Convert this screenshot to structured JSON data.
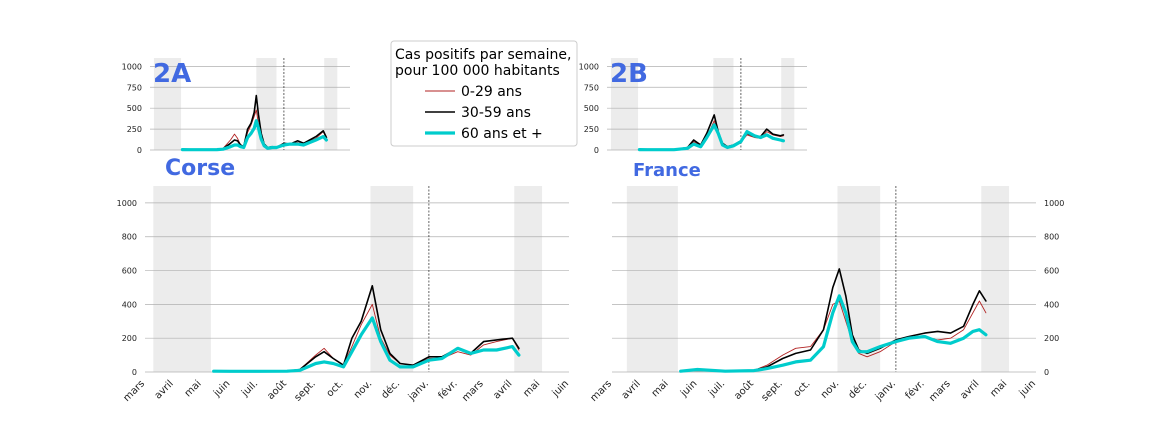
{
  "legend": {
    "title_line1": "Cas positifs par semaine,",
    "title_line2": "pour 100 000 habitants",
    "entries": [
      {
        "label": "0-29 ans",
        "color": "#b22222"
      },
      {
        "label": "30-59 ans",
        "color": "#000000"
      },
      {
        "label": "60 ans et +",
        "color": "#00cccc"
      }
    ]
  },
  "colors": {
    "title": "#4169e1",
    "shade": "#ececec",
    "grid": "#b0b0b0"
  },
  "chart_data": [
    {
      "id": "2A",
      "type": "line",
      "title": "2A",
      "title_position": "inside-top-left",
      "xlim": [
        "2020-03-01",
        "2021-06-01"
      ],
      "ylim": [
        0,
        1100
      ],
      "yticks": [
        0,
        250,
        500,
        750,
        1000
      ],
      "grid": "horizontal",
      "shaded_periods": [
        [
          "2020-03-10",
          "2020-05-11"
        ],
        [
          "2020-10-30",
          "2020-12-15"
        ],
        [
          "2021-04-03",
          "2021-05-03"
        ]
      ],
      "vline": "2021-01-01",
      "series": [
        {
          "name": "0-29 ans",
          "x": [
            "2020-05-14",
            "2020-06-01",
            "2020-06-15",
            "2020-07-01",
            "2020-07-15",
            "2020-08-01",
            "2020-08-15",
            "2020-09-01",
            "2020-09-10",
            "2020-09-17",
            "2020-09-24",
            "2020-10-01",
            "2020-10-10",
            "2020-10-18",
            "2020-10-25",
            "2020-10-30",
            "2020-11-04",
            "2020-11-10",
            "2020-11-17",
            "2020-11-25",
            "2020-12-05",
            "2020-12-15",
            "2021-01-01",
            "2021-01-15",
            "2021-02-01",
            "2021-02-15",
            "2021-03-01",
            "2021-03-15",
            "2021-04-01",
            "2021-04-08"
          ],
          "y": [
            5,
            4,
            3,
            3,
            4,
            6,
            20,
            120,
            190,
            140,
            60,
            40,
            210,
            300,
            400,
            480,
            310,
            170,
            60,
            30,
            40,
            30,
            60,
            80,
            90,
            70,
            110,
            140,
            220,
            140
          ]
        },
        {
          "name": "30-59 ans",
          "x": [
            "2020-05-14",
            "2020-06-01",
            "2020-06-15",
            "2020-07-01",
            "2020-07-15",
            "2020-08-01",
            "2020-08-15",
            "2020-09-01",
            "2020-09-10",
            "2020-09-17",
            "2020-09-24",
            "2020-10-01",
            "2020-10-10",
            "2020-10-18",
            "2020-10-25",
            "2020-10-30",
            "2020-11-04",
            "2020-11-10",
            "2020-11-17",
            "2020-11-25",
            "2020-12-05",
            "2020-12-15",
            "2021-01-01",
            "2021-01-15",
            "2021-02-01",
            "2021-02-15",
            "2021-03-01",
            "2021-03-15",
            "2021-04-01",
            "2021-04-08"
          ],
          "y": [
            5,
            4,
            3,
            3,
            4,
            6,
            15,
            80,
            120,
            110,
            60,
            40,
            250,
            320,
            450,
            650,
            420,
            200,
            70,
            30,
            40,
            30,
            80,
            70,
            110,
            80,
            120,
            160,
            230,
            150
          ]
        },
        {
          "name": "60 ans et +",
          "x": [
            "2020-05-14",
            "2020-06-01",
            "2020-06-15",
            "2020-07-01",
            "2020-07-15",
            "2020-08-01",
            "2020-08-15",
            "2020-09-01",
            "2020-09-10",
            "2020-09-17",
            "2020-09-24",
            "2020-10-01",
            "2020-10-10",
            "2020-10-18",
            "2020-10-25",
            "2020-10-30",
            "2020-11-04",
            "2020-11-10",
            "2020-11-17",
            "2020-11-25",
            "2020-12-05",
            "2020-12-15",
            "2021-01-01",
            "2021-01-15",
            "2021-02-01",
            "2021-02-15",
            "2021-03-01",
            "2021-03-15",
            "2021-04-01",
            "2021-04-08"
          ],
          "y": [
            5,
            4,
            3,
            3,
            4,
            5,
            10,
            40,
            60,
            60,
            40,
            30,
            150,
            200,
            260,
            350,
            260,
            130,
            50,
            20,
            30,
            30,
            60,
            70,
            70,
            60,
            90,
            120,
            160,
            120
          ]
        }
      ]
    },
    {
      "id": "2B",
      "type": "line",
      "title": "2B",
      "title_position": "inside-top-left",
      "xlim": [
        "2020-03-01",
        "2021-06-01"
      ],
      "ylim": [
        0,
        1100
      ],
      "yticks": [
        0,
        250,
        500,
        750,
        1000
      ],
      "grid": "horizontal",
      "shaded_periods": [
        [
          "2020-03-10",
          "2020-05-11"
        ],
        [
          "2020-10-30",
          "2020-12-15"
        ],
        [
          "2021-04-03",
          "2021-05-03"
        ]
      ],
      "vline": "2021-01-01",
      "series": [
        {
          "name": "0-29 ans",
          "x": [
            "2020-05-14",
            "2020-06-01",
            "2020-07-01",
            "2020-08-01",
            "2020-09-01",
            "2020-09-15",
            "2020-10-01",
            "2020-10-15",
            "2020-11-01",
            "2020-11-10",
            "2020-11-20",
            "2020-12-01",
            "2020-12-15",
            "2021-01-01",
            "2021-01-15",
            "2021-02-01",
            "2021-02-15",
            "2021-03-01",
            "2021-03-15",
            "2021-04-01",
            "2021-04-08"
          ],
          "y": [
            5,
            4,
            3,
            4,
            20,
            100,
            50,
            150,
            350,
            200,
            80,
            40,
            50,
            90,
            180,
            150,
            140,
            220,
            180,
            160,
            170
          ]
        },
        {
          "name": "30-59 ans",
          "x": [
            "2020-05-14",
            "2020-06-01",
            "2020-07-01",
            "2020-08-01",
            "2020-09-01",
            "2020-09-15",
            "2020-10-01",
            "2020-10-15",
            "2020-11-01",
            "2020-11-10",
            "2020-11-20",
            "2020-12-01",
            "2020-12-15",
            "2021-01-01",
            "2021-01-15",
            "2021-02-01",
            "2021-02-15",
            "2021-03-01",
            "2021-03-15",
            "2021-04-01",
            "2021-04-08"
          ],
          "y": [
            5,
            4,
            3,
            4,
            30,
            120,
            60,
            200,
            420,
            220,
            80,
            40,
            60,
            110,
            200,
            160,
            160,
            250,
            190,
            170,
            180
          ]
        },
        {
          "name": "60 ans et +",
          "x": [
            "2020-05-14",
            "2020-06-01",
            "2020-07-01",
            "2020-08-01",
            "2020-09-01",
            "2020-09-15",
            "2020-10-01",
            "2020-10-15",
            "2020-11-01",
            "2020-11-10",
            "2020-11-20",
            "2020-12-01",
            "2020-12-15",
            "2021-01-01",
            "2021-01-15",
            "2021-02-01",
            "2021-02-15",
            "2021-03-01",
            "2021-03-15",
            "2021-04-01",
            "2021-04-08"
          ],
          "y": [
            5,
            4,
            3,
            4,
            20,
            70,
            40,
            150,
            300,
            200,
            60,
            30,
            50,
            100,
            220,
            170,
            150,
            180,
            140,
            120,
            110
          ]
        }
      ]
    },
    {
      "id": "corse",
      "type": "line",
      "title": "Corse",
      "title_position": "above-left",
      "xlim": [
        "2020-03-01",
        "2021-06-01"
      ],
      "ylim": [
        0,
        1100
      ],
      "yticks": [
        0,
        200,
        400,
        600,
        800,
        1000
      ],
      "y_axis_side": "left",
      "grid": "horizontal",
      "x_tick_labels": [
        "mars",
        "avril",
        "mai",
        "juin",
        "juil.",
        "août",
        "sept.",
        "oct.",
        "nov.",
        "déc.",
        "janv.",
        "févr.",
        "mars",
        "avril",
        "mai",
        "juin"
      ],
      "x_tick_dates": [
        "2020-03-01",
        "2020-04-01",
        "2020-05-01",
        "2020-06-01",
        "2020-07-01",
        "2020-08-01",
        "2020-09-01",
        "2020-10-01",
        "2020-11-01",
        "2020-12-01",
        "2021-01-01",
        "2021-02-01",
        "2021-03-01",
        "2021-04-01",
        "2021-05-01",
        "2021-06-01"
      ],
      "shaded_periods": [
        [
          "2020-03-10",
          "2020-05-11"
        ],
        [
          "2020-10-30",
          "2020-12-15"
        ],
        [
          "2021-04-03",
          "2021-05-03"
        ]
      ],
      "vline": "2021-01-01",
      "series": [
        {
          "name": "0-29 ans",
          "x": [
            "2020-05-14",
            "2020-06-01",
            "2020-07-01",
            "2020-08-01",
            "2020-08-15",
            "2020-09-01",
            "2020-09-10",
            "2020-09-20",
            "2020-10-01",
            "2020-10-10",
            "2020-10-20",
            "2020-11-01",
            "2020-11-10",
            "2020-11-20",
            "2020-12-01",
            "2020-12-15",
            "2021-01-01",
            "2021-01-15",
            "2021-02-01",
            "2021-02-15",
            "2021-03-01",
            "2021-03-15",
            "2021-04-01",
            "2021-04-08"
          ],
          "y": [
            5,
            4,
            4,
            5,
            15,
            100,
            140,
            80,
            40,
            150,
            280,
            400,
            200,
            100,
            50,
            40,
            80,
            80,
            120,
            100,
            160,
            180,
            200,
            130
          ]
        },
        {
          "name": "30-59 ans",
          "x": [
            "2020-05-14",
            "2020-06-01",
            "2020-07-01",
            "2020-08-01",
            "2020-08-15",
            "2020-09-01",
            "2020-09-10",
            "2020-09-20",
            "2020-10-01",
            "2020-10-10",
            "2020-10-20",
            "2020-11-01",
            "2020-11-10",
            "2020-11-20",
            "2020-12-01",
            "2020-12-15",
            "2021-01-01",
            "2021-01-15",
            "2021-02-01",
            "2021-02-15",
            "2021-03-01",
            "2021-03-15",
            "2021-04-01",
            "2021-04-08"
          ],
          "y": [
            5,
            4,
            4,
            5,
            15,
            90,
            120,
            80,
            40,
            200,
            300,
            510,
            250,
            110,
            50,
            40,
            90,
            90,
            140,
            110,
            180,
            190,
            200,
            140
          ]
        },
        {
          "name": "60 ans et +",
          "x": [
            "2020-05-14",
            "2020-06-01",
            "2020-07-01",
            "2020-08-01",
            "2020-08-15",
            "2020-09-01",
            "2020-09-10",
            "2020-09-20",
            "2020-10-01",
            "2020-10-10",
            "2020-10-20",
            "2020-11-01",
            "2020-11-10",
            "2020-11-20",
            "2020-12-01",
            "2020-12-15",
            "2021-01-01",
            "2021-01-15",
            "2021-02-01",
            "2021-02-15",
            "2021-03-01",
            "2021-03-15",
            "2021-04-01",
            "2021-04-08"
          ],
          "y": [
            5,
            4,
            4,
            5,
            10,
            50,
            60,
            50,
            30,
            120,
            220,
            320,
            180,
            70,
            30,
            30,
            70,
            80,
            140,
            110,
            130,
            130,
            150,
            100
          ]
        }
      ]
    },
    {
      "id": "france",
      "type": "line",
      "title": "France",
      "title_position": "above-left",
      "xlim": [
        "2020-03-01",
        "2021-06-01"
      ],
      "ylim": [
        0,
        1100
      ],
      "yticks": [
        0,
        200,
        400,
        600,
        800,
        1000
      ],
      "y_axis_side": "right",
      "grid": "horizontal",
      "x_tick_labels": [
        "mars",
        "avril",
        "mai",
        "juin",
        "juil.",
        "août",
        "sept.",
        "oct.",
        "nov.",
        "déc.",
        "janv.",
        "févr.",
        "mars",
        "avril",
        "mai",
        "juin"
      ],
      "x_tick_dates": [
        "2020-03-01",
        "2020-04-01",
        "2020-05-01",
        "2020-06-01",
        "2020-07-01",
        "2020-08-01",
        "2020-09-01",
        "2020-10-01",
        "2020-11-01",
        "2020-12-01",
        "2021-01-01",
        "2021-02-01",
        "2021-03-01",
        "2021-04-01",
        "2021-05-01",
        "2021-06-01"
      ],
      "shaded_periods": [
        [
          "2020-03-17",
          "2020-05-11"
        ],
        [
          "2020-10-30",
          "2020-12-15"
        ],
        [
          "2021-04-03",
          "2021-05-03"
        ]
      ],
      "vline": "2021-01-01",
      "series": [
        {
          "name": "0-29 ans",
          "x": [
            "2020-05-14",
            "2020-06-01",
            "2020-07-01",
            "2020-08-01",
            "2020-08-15",
            "2020-09-01",
            "2020-09-15",
            "2020-10-01",
            "2020-10-15",
            "2020-10-25",
            "2020-11-01",
            "2020-11-08",
            "2020-11-15",
            "2020-11-22",
            "2020-12-01",
            "2020-12-15",
            "2021-01-01",
            "2021-01-15",
            "2021-02-01",
            "2021-02-15",
            "2021-03-01",
            "2021-03-15",
            "2021-03-25",
            "2021-04-01",
            "2021-04-08"
          ],
          "y": [
            5,
            10,
            5,
            10,
            40,
            100,
            140,
            150,
            250,
            400,
            420,
            300,
            180,
            110,
            90,
            120,
            180,
            200,
            210,
            190,
            200,
            250,
            350,
            420,
            350
          ]
        },
        {
          "name": "30-59 ans",
          "x": [
            "2020-05-14",
            "2020-06-01",
            "2020-07-01",
            "2020-08-01",
            "2020-08-15",
            "2020-09-01",
            "2020-09-15",
            "2020-10-01",
            "2020-10-15",
            "2020-10-25",
            "2020-11-01",
            "2020-11-08",
            "2020-11-15",
            "2020-11-22",
            "2020-12-01",
            "2020-12-15",
            "2021-01-01",
            "2021-01-15",
            "2021-02-01",
            "2021-02-15",
            "2021-03-01",
            "2021-03-15",
            "2021-03-25",
            "2021-04-01",
            "2021-04-08"
          ],
          "y": [
            5,
            10,
            5,
            10,
            30,
            80,
            110,
            130,
            250,
            500,
            610,
            450,
            220,
            130,
            110,
            140,
            190,
            210,
            230,
            240,
            230,
            270,
            400,
            480,
            420
          ]
        },
        {
          "name": "60 ans et +",
          "x": [
            "2020-05-14",
            "2020-06-01",
            "2020-07-01",
            "2020-08-01",
            "2020-08-15",
            "2020-09-01",
            "2020-09-15",
            "2020-10-01",
            "2020-10-15",
            "2020-10-25",
            "2020-11-01",
            "2020-11-08",
            "2020-11-15",
            "2020-11-22",
            "2020-12-01",
            "2020-12-15",
            "2021-01-01",
            "2021-01-15",
            "2021-02-01",
            "2021-02-15",
            "2021-03-01",
            "2021-03-15",
            "2021-03-25",
            "2021-04-01",
            "2021-04-08"
          ],
          "y": [
            5,
            15,
            5,
            8,
            20,
            40,
            60,
            70,
            150,
            350,
            450,
            350,
            180,
            120,
            120,
            150,
            180,
            200,
            210,
            180,
            170,
            200,
            240,
            250,
            220
          ]
        }
      ]
    }
  ]
}
